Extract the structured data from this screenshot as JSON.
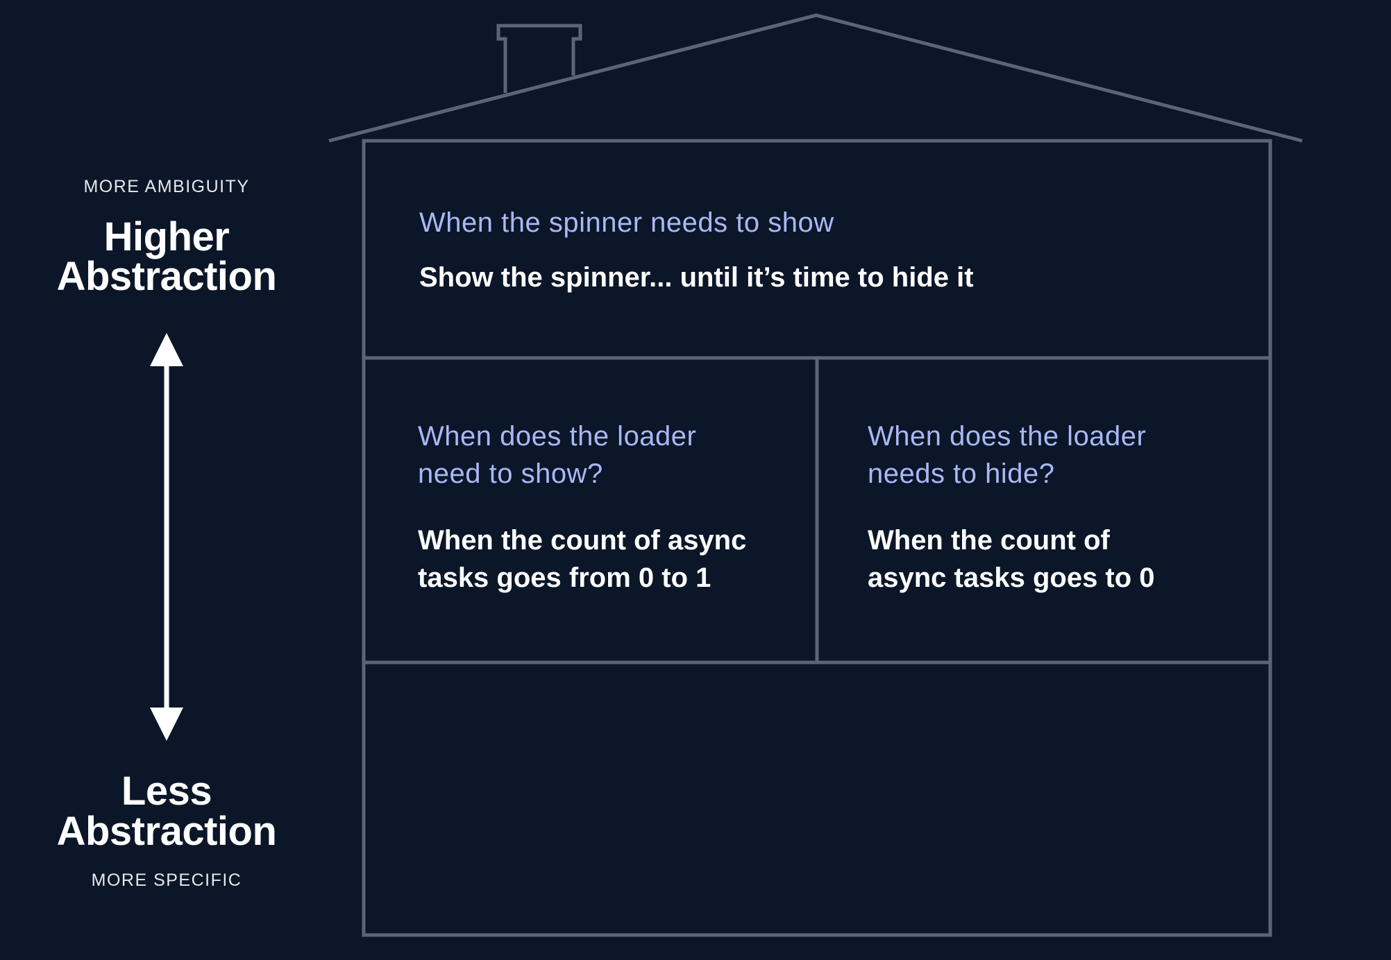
{
  "axis": {
    "top_caption": "MORE AMBIGUITY",
    "top_title_line1": "Higher",
    "top_title_line2": "Abstraction",
    "bottom_title_line1": "Less",
    "bottom_title_line2": "Abstraction",
    "bottom_caption": "MORE SPECIFIC"
  },
  "levels": {
    "top": {
      "question": "When the spinner needs to show",
      "answer": "Show the spinner... until it’s time to hide it"
    },
    "middle_left": {
      "question_line1": "When does the loader",
      "question_line2": "need to show?",
      "answer_line1": "When the count of async",
      "answer_line2": "tasks goes from 0 to 1"
    },
    "middle_right": {
      "question_line1": "When does the loader",
      "question_line2": "needs to hide?",
      "answer_line1": "When the count of",
      "answer_line2": "async tasks goes to 0"
    },
    "bottom": {}
  },
  "colors": {
    "background": "#0b1628",
    "outline": "#5b6577",
    "question_text": "#a9b8f5",
    "answer_text": "#ffffff",
    "arrow": "#ffffff"
  }
}
